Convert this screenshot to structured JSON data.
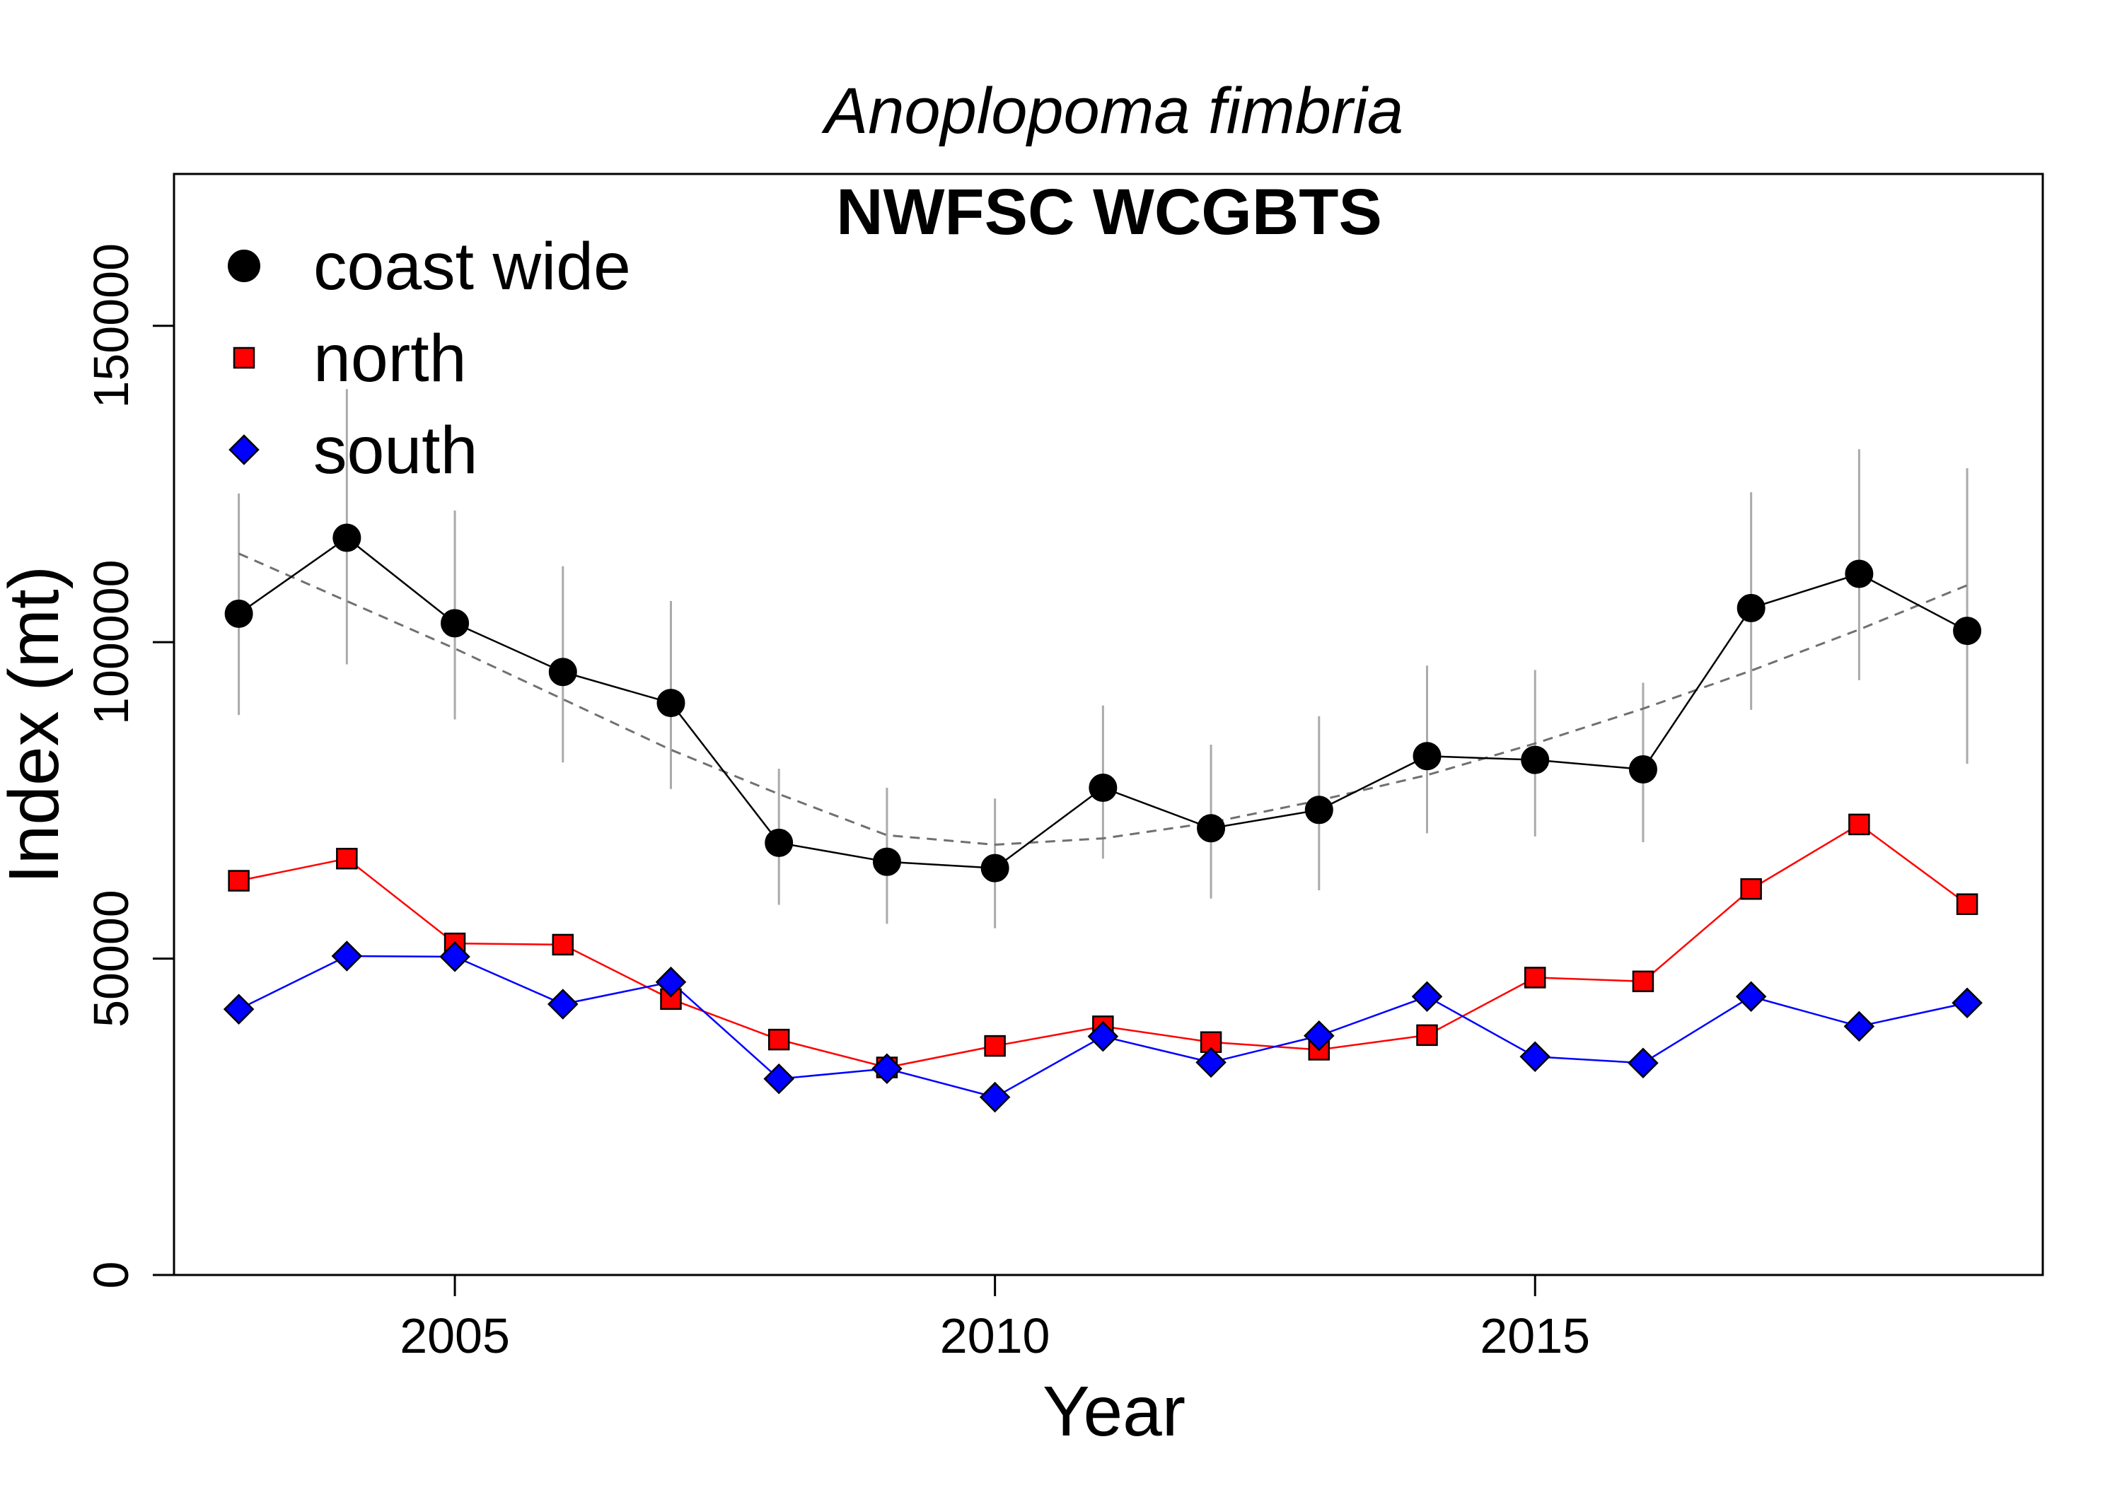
{
  "chart_data": {
    "type": "line",
    "title": "Anoplopoma fimbria",
    "subtitle": "NWFSC WCGBTS",
    "xlabel": "Year",
    "ylabel": "Index (mt)",
    "xlim": [
      2002.4,
      2019.7
    ],
    "ylim": [
      0,
      174000
    ],
    "x_ticks": [
      2005,
      2010,
      2015
    ],
    "y_ticks": [
      0,
      50000,
      100000,
      150000
    ],
    "x_tick_labels": [
      "2005",
      "2010",
      "2015"
    ],
    "y_tick_labels": [
      "0",
      "50000",
      "100000",
      "150000"
    ],
    "legend_position": "top-left",
    "grid": false,
    "x": [
      2003,
      2004,
      2005,
      2006,
      2007,
      2008,
      2009,
      2010,
      2011,
      2012,
      2013,
      2014,
      2015,
      2016,
      2017,
      2018,
      2019
    ],
    "series": [
      {
        "name": "coast wide",
        "marker": "circle",
        "color": "#000000",
        "values": [
          104500,
          116500,
          103000,
          95300,
          90400,
          68300,
          65300,
          64300,
          77000,
          70600,
          73500,
          82000,
          81400,
          79900,
          105400,
          110800,
          101800
        ],
        "ci_lower": [
          88500,
          96500,
          87800,
          81000,
          76800,
          58500,
          55500,
          54800,
          65800,
          59500,
          60800,
          69800,
          69300,
          68400,
          89300,
          94000,
          80800
        ],
        "ci_upper": [
          123500,
          140000,
          120800,
          112000,
          106500,
          80000,
          77000,
          75300,
          90000,
          83800,
          88300,
          96300,
          95600,
          93600,
          123700,
          130500,
          127500
        ]
      },
      {
        "name": "north",
        "marker": "square",
        "color": "#ff0000",
        "values": [
          62300,
          65800,
          52400,
          52200,
          43600,
          37200,
          32800,
          36200,
          39300,
          36800,
          35600,
          37900,
          47000,
          46400,
          61000,
          71200,
          58600
        ]
      },
      {
        "name": "south",
        "marker": "diamond",
        "color": "#0000ff",
        "values": [
          42000,
          50400,
          50300,
          42800,
          46300,
          31000,
          32600,
          28100,
          37700,
          33600,
          37800,
          44000,
          34500,
          33500,
          44000,
          39300,
          43000
        ]
      }
    ],
    "trend_x": [
      2003,
      2004,
      2005,
      2006,
      2007,
      2008,
      2009,
      2010,
      2011,
      2012,
      2013,
      2014,
      2015,
      2016,
      2017,
      2018,
      2019
    ],
    "trend_values": [
      114000,
      106500,
      99000,
      91000,
      83000,
      76000,
      69500,
      68000,
      69000,
      71500,
      75000,
      79000,
      84000,
      89500,
      95500,
      102000,
      109000
    ],
    "colors": {
      "errorbar": "#aaaaaa",
      "trend": "#707070",
      "axis": "#000000"
    }
  }
}
